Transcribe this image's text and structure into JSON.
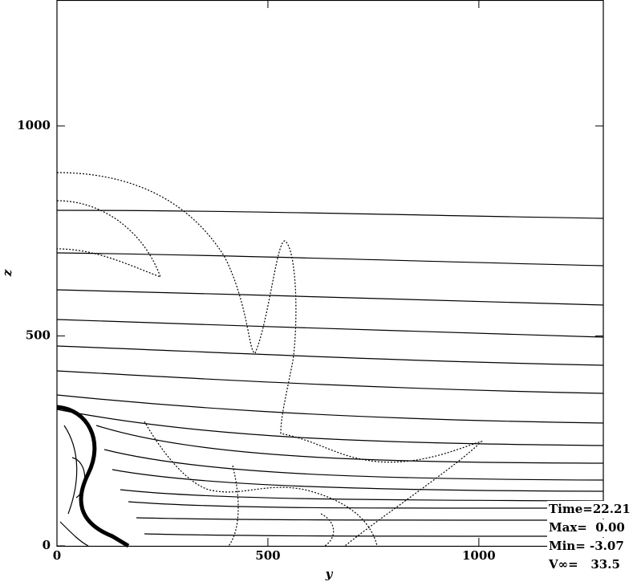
{
  "chart_data": {
    "type": "contour",
    "xlabel": "y",
    "ylabel": "z",
    "xlim": [
      0,
      1295
    ],
    "ylim": [
      0,
      1300
    ],
    "xticks": [
      0,
      500,
      1000
    ],
    "yticks": [
      0,
      500,
      1000
    ],
    "annotations": [
      "Time=22.21",
      "Max=  0.00",
      "Min= -3.07",
      "V∞=   33.5"
    ]
  }
}
